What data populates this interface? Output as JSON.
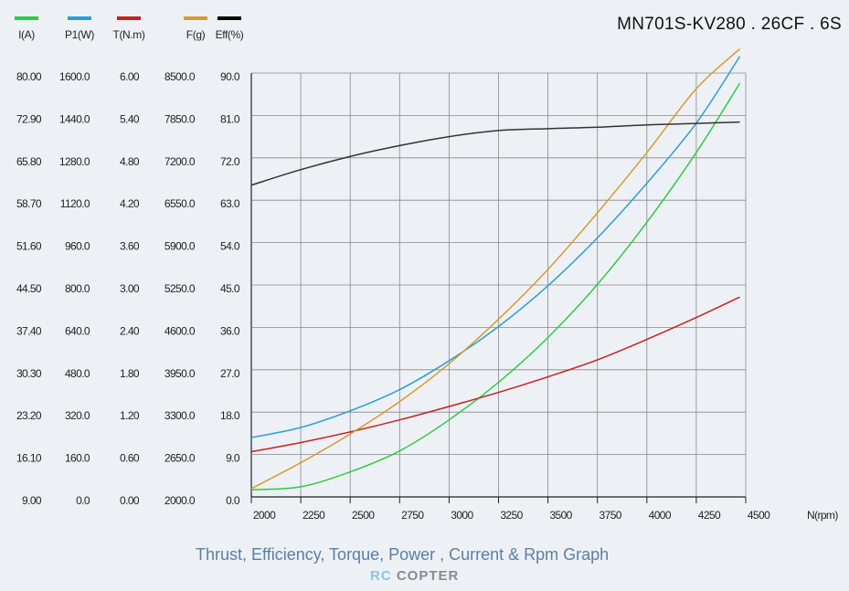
{
  "chart_data": {
    "type": "line",
    "title": "MN701S-KV280 . 26CF . 6S",
    "caption": "Thrust, Efficiency, Torque, Power , Current & Rpm Graph",
    "xlabel": "N(rpm)",
    "xlim": [
      2000,
      4500
    ],
    "x_ticks": [
      "2000",
      "2250",
      "2500",
      "2750",
      "3000",
      "3250",
      "3500",
      "3750",
      "4000",
      "4250",
      "4500"
    ],
    "grid": true,
    "legend_position": "top-left",
    "x": [
      2000,
      2250,
      2500,
      2750,
      3000,
      3250,
      3500,
      3750,
      4000,
      4250,
      4470
    ],
    "series": [
      {
        "name": "I(A)",
        "color": "#2ecc40",
        "ylim": [
          9,
          80
        ],
        "ticks": [
          "9.00",
          "16.10",
          "23.20",
          "30.30",
          "37.40",
          "44.50",
          "51.60",
          "58.70",
          "65.80",
          "72.90",
          "80.00"
        ],
        "values": [
          10.2,
          10.7,
          13.2,
          16.7,
          21.9,
          28.2,
          35.7,
          44.6,
          55.0,
          66.7,
          78.3
        ]
      },
      {
        "name": "P1(W)",
        "color": "#2a9fd6",
        "ylim": [
          0,
          1600
        ],
        "ticks": [
          "0.0",
          "160.0",
          "320.0",
          "480.0",
          "640.0",
          "800.0",
          "960.0",
          "1120.0",
          "1280.0",
          "1440.0",
          "1600.0"
        ],
        "values": [
          224,
          262,
          325,
          405,
          514,
          643,
          797,
          978,
          1184,
          1411,
          1663
        ]
      },
      {
        "name": "T(N.m)",
        "color": "#cc1f1f",
        "ylim": [
          0,
          6
        ],
        "ticks": [
          "0.00",
          "0.60",
          "1.20",
          "1.80",
          "2.40",
          "3.00",
          "3.60",
          "4.20",
          "4.80",
          "5.40",
          "6.00"
        ],
        "values": [
          0.64,
          0.77,
          0.92,
          1.09,
          1.28,
          1.48,
          1.7,
          1.94,
          2.23,
          2.54,
          2.83
        ]
      },
      {
        "name": "F(g)",
        "color": "#d9992a",
        "ylim": [
          2000,
          8500
        ],
        "ticks": [
          "2000.0",
          "2650.0",
          "3300.0",
          "3950.0",
          "4600.0",
          "5250.0",
          "5900.0",
          "6550.0",
          "7200.0",
          "7850.0",
          "8500.0"
        ],
        "values": [
          2127,
          2525,
          2965,
          3462,
          4043,
          4725,
          5490,
          6357,
          7280,
          8260,
          8870
        ]
      },
      {
        "name": "Eff(%)",
        "color": "#333333",
        "legend_color": "#000000",
        "ylim": [
          0,
          90
        ],
        "ticks": [
          "0.0",
          "9.0",
          "18.0",
          "27.0",
          "36.0",
          "45.0",
          "54.0",
          "63.0",
          "72.0",
          "81.0",
          "90.0"
        ],
        "values": [
          66.2,
          69.5,
          72.3,
          74.6,
          76.5,
          77.8,
          78.2,
          78.5,
          79.0,
          79.3,
          79.6
        ]
      }
    ]
  },
  "watermark": {
    "part1": "RC",
    "part2": "COPTER"
  }
}
